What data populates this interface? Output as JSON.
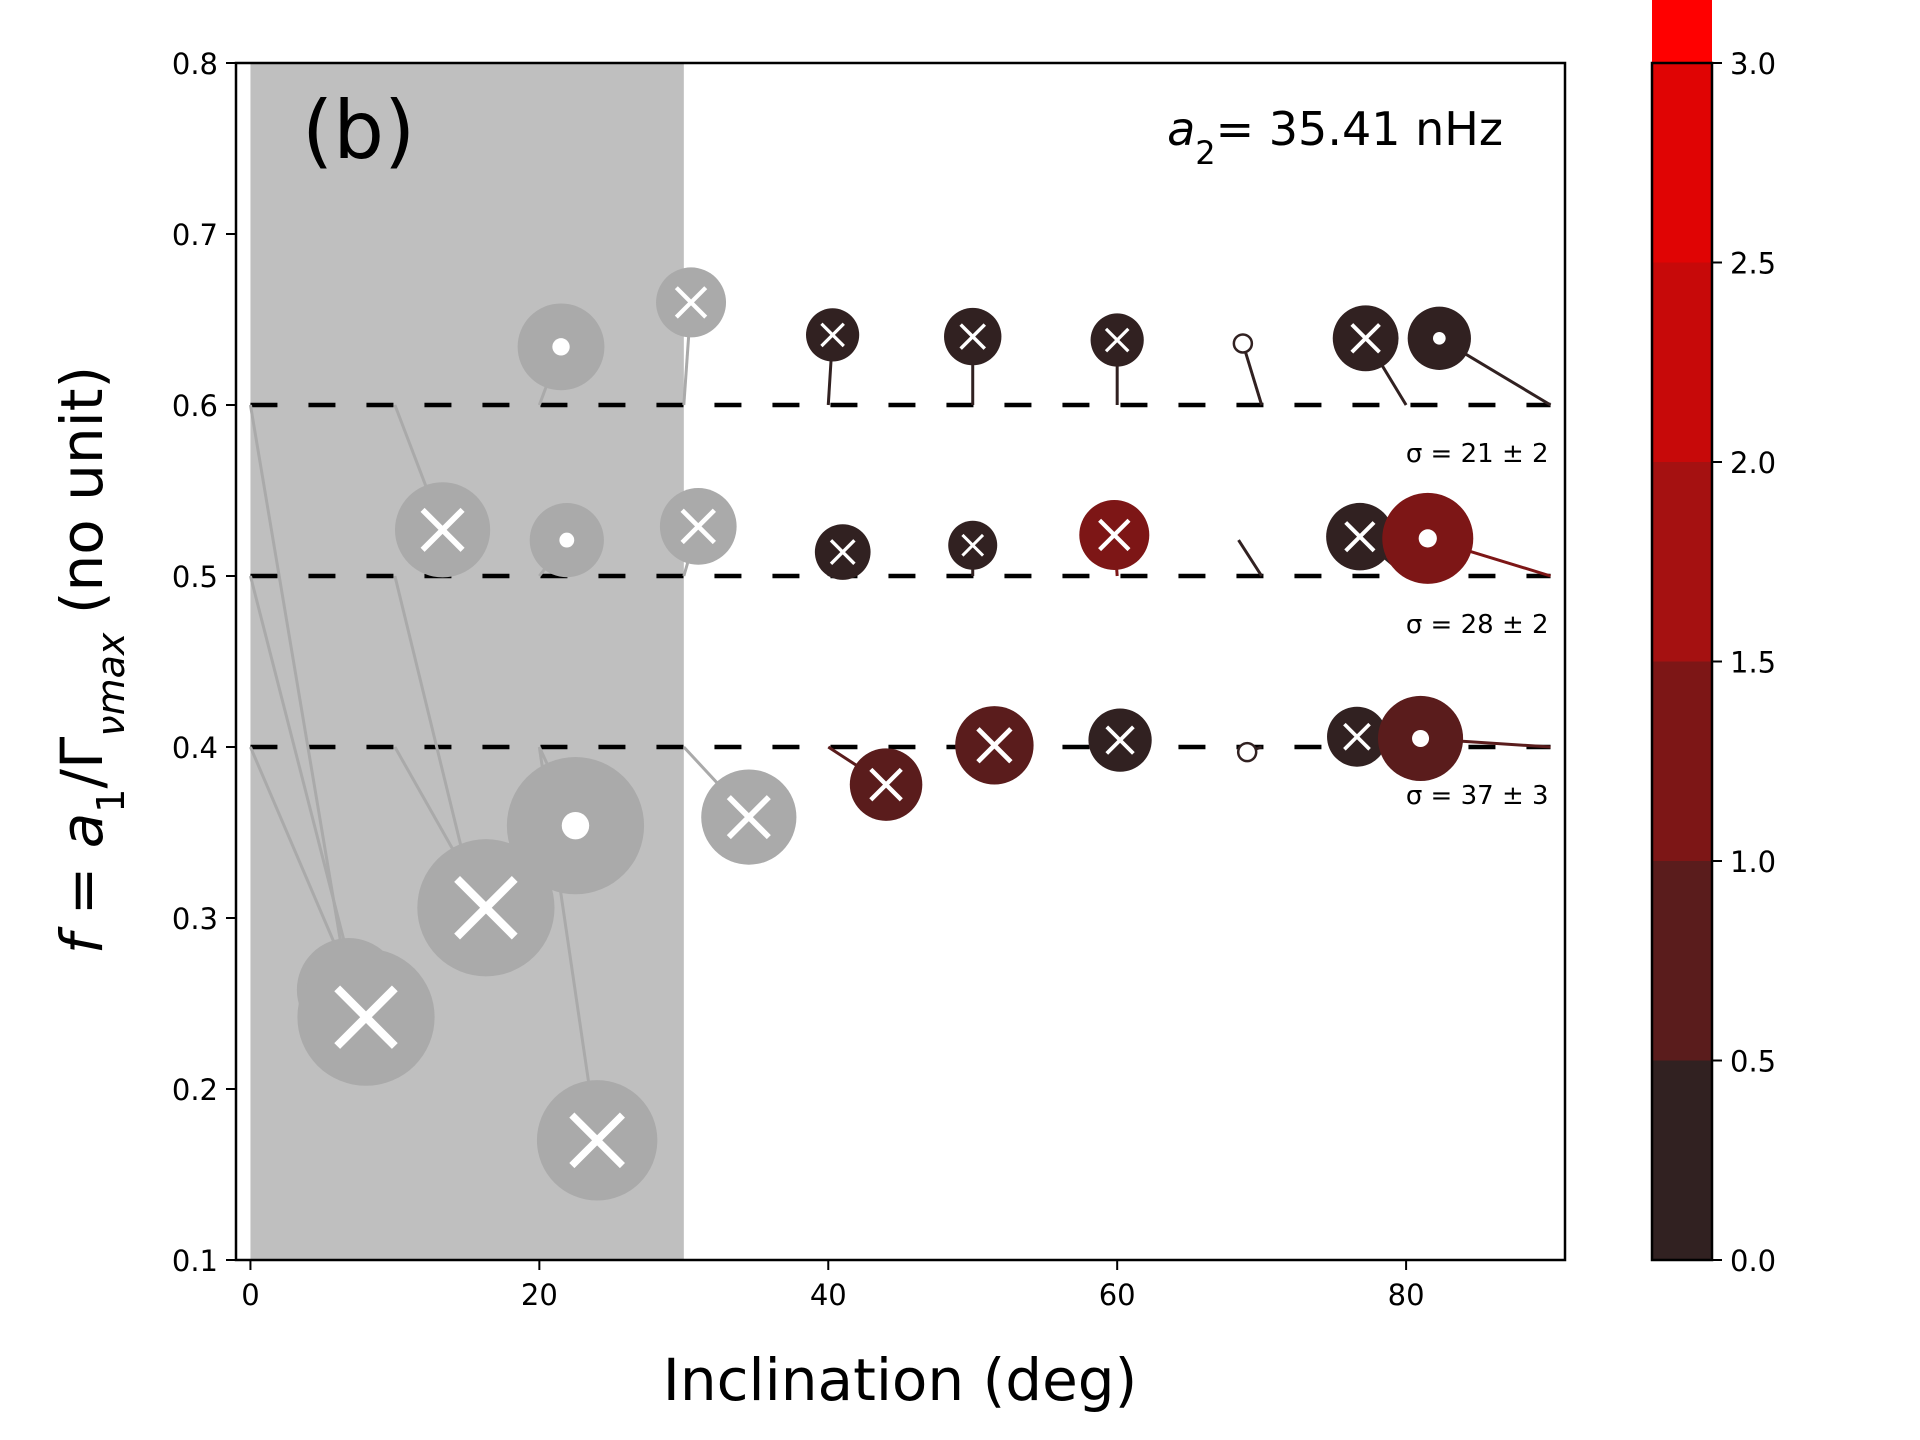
{
  "chart_data": {
    "type": "scatter",
    "panel_label": "(b)",
    "annotation": "a2 = 35.41 nHz",
    "xlabel": "Inclination (deg)",
    "ylabel": "f = a1/Γ_νmax (no unit)",
    "xlim": [
      -1,
      91
    ],
    "ylim": [
      0.1,
      0.8
    ],
    "xticks": [
      0,
      20,
      40,
      60,
      80
    ],
    "yticks": [
      0.1,
      0.2,
      0.3,
      0.4,
      0.5,
      0.6,
      0.7,
      0.8
    ],
    "shaded_region": {
      "x0": 0,
      "x1": 30,
      "color": "#bfbfbf"
    },
    "reference_lines": [
      {
        "y": 0.6,
        "sigma": "σ = 21 ± 2"
      },
      {
        "y": 0.5,
        "sigma": "σ = 28 ± 2"
      },
      {
        "y": 0.4,
        "sigma": "σ = 37 ± 3"
      }
    ],
    "colorbar": {
      "ticks": [
        0.0,
        0.5,
        1.0,
        1.5,
        2.0,
        2.5,
        3.0
      ],
      "colors": [
        "#312121",
        "#5a1c1c",
        "#7d1616",
        "#a51111",
        "#c70909",
        "#e00404",
        "#ff0000"
      ]
    },
    "points": [
      {
        "x_true": 0,
        "y_true": 0.6,
        "x": 6.8,
        "y": 0.258,
        "size": 0.9,
        "marker": "x",
        "shaded": true
      },
      {
        "x_true": 0,
        "y_true": 0.5,
        "x": 7.5,
        "y": 0.253,
        "size": 0.5,
        "marker": "x",
        "shaded": true
      },
      {
        "x_true": 0,
        "y_true": 0.4,
        "x": 8.0,
        "y": 0.242,
        "size": 1.3,
        "marker": "x",
        "shaded": true
      },
      {
        "x_true": 10,
        "y_true": 0.6,
        "x": 13.3,
        "y": 0.527,
        "size": 0.8,
        "marker": "x",
        "shaded": true
      },
      {
        "x_true": 10,
        "y_true": 0.5,
        "x": 15.5,
        "y": 0.31,
        "size": 0.5,
        "marker": "x",
        "shaded": true
      },
      {
        "x_true": 10,
        "y_true": 0.4,
        "x": 16.3,
        "y": 0.306,
        "size": 1.3,
        "marker": "x",
        "shaded": true
      },
      {
        "x_true": 20,
        "y_true": 0.6,
        "x": 21.5,
        "y": 0.634,
        "size": 0.7,
        "marker": "dot",
        "shaded": true
      },
      {
        "x_true": 20,
        "y_true": 0.5,
        "x": 21.9,
        "y": 0.521,
        "size": 0.55,
        "marker": "dot",
        "shaded": true
      },
      {
        "x_true": 20,
        "y_true": 0.4,
        "x": 22.5,
        "y": 0.354,
        "size": 1.3,
        "marker": "dot",
        "shaded": true
      },
      {
        "x_true": 20,
        "y_true": 0.4,
        "x": 24.0,
        "y": 0.17,
        "size": 1.1,
        "marker": "x",
        "shaded": true
      },
      {
        "x_true": 30,
        "y_true": 0.6,
        "x": 30.5,
        "y": 0.66,
        "size": 0.5,
        "marker": "x",
        "shaded": true
      },
      {
        "x_true": 30,
        "y_true": 0.5,
        "x": 31.0,
        "y": 0.529,
        "size": 0.58,
        "marker": "x",
        "shaded": true
      },
      {
        "x_true": 30,
        "y_true": 0.4,
        "x": 34.5,
        "y": 0.359,
        "size": 0.8,
        "marker": "x",
        "shaded": true
      },
      {
        "x_true": 40,
        "y_true": 0.6,
        "x": 40.3,
        "y": 0.641,
        "size": 0.3,
        "marker": "x",
        "color_value": 0.1
      },
      {
        "x_true": 40,
        "y_true": 0.5,
        "x": 41.0,
        "y": 0.514,
        "size": 0.33,
        "marker": "x",
        "color_value": 0.2
      },
      {
        "x_true": 40,
        "y_true": 0.4,
        "x": 44.0,
        "y": 0.378,
        "size": 0.53,
        "marker": "x",
        "color_value": 0.8
      },
      {
        "x_true": 50,
        "y_true": 0.6,
        "x": 50.0,
        "y": 0.64,
        "size": 0.35,
        "marker": "x",
        "color_value": 0.1
      },
      {
        "x_true": 50,
        "y_true": 0.5,
        "x": 50.0,
        "y": 0.518,
        "size": 0.25,
        "marker": "x",
        "color_value": 0.1
      },
      {
        "x_true": 50,
        "y_true": 0.4,
        "x": 51.5,
        "y": 0.401,
        "size": 0.6,
        "marker": "x",
        "color_value": 0.9
      },
      {
        "x_true": 60,
        "y_true": 0.6,
        "x": 60.0,
        "y": 0.638,
        "size": 0.3,
        "marker": "x",
        "color_value": 0.1
      },
      {
        "x_true": 60,
        "y_true": 0.5,
        "x": 59.8,
        "y": 0.524,
        "size": 0.5,
        "marker": "x",
        "color_value": 1.2
      },
      {
        "x_true": 60,
        "y_true": 0.4,
        "x": 60.2,
        "y": 0.404,
        "size": 0.42,
        "marker": "x",
        "color_value": 0.1
      },
      {
        "x_true": 70,
        "y_true": 0.6,
        "x": 68.7,
        "y": 0.636,
        "size": 0.25,
        "marker": "dot",
        "hollow": true,
        "color_value": 0.1
      },
      {
        "x_true": 70,
        "y_true": 0.5,
        "x": 68.4,
        "y": 0.521,
        "size": 0.0,
        "marker": "none",
        "color_value": 0.2
      },
      {
        "x_true": 70,
        "y_true": 0.4,
        "x": 69.0,
        "y": 0.397,
        "size": 0.25,
        "marker": "dot",
        "hollow": true,
        "color_value": 0.1
      },
      {
        "x_true": 80,
        "y_true": 0.6,
        "x": 77.2,
        "y": 0.639,
        "size": 0.45,
        "marker": "x",
        "color_value": 0.2
      },
      {
        "x_true": 80,
        "y_true": 0.5,
        "x": 76.8,
        "y": 0.523,
        "size": 0.47,
        "marker": "x",
        "color_value": 0.2
      },
      {
        "x_true": 80,
        "y_true": 0.4,
        "x": 76.6,
        "y": 0.406,
        "size": 0.38,
        "marker": "x",
        "color_value": 0.2
      },
      {
        "x_true": 90,
        "y_true": 0.6,
        "x": 82.3,
        "y": 0.639,
        "size": 0.42,
        "marker": "dot",
        "color_value": 0.1
      },
      {
        "x_true": 90,
        "y_true": 0.5,
        "x": 81.5,
        "y": 0.522,
        "size": 0.75,
        "marker": "dot",
        "color_value": 1.3
      },
      {
        "x_true": 90,
        "y_true": 0.4,
        "x": 81.0,
        "y": 0.405,
        "size": 0.68,
        "marker": "dot",
        "color_value": 0.6
      }
    ]
  }
}
